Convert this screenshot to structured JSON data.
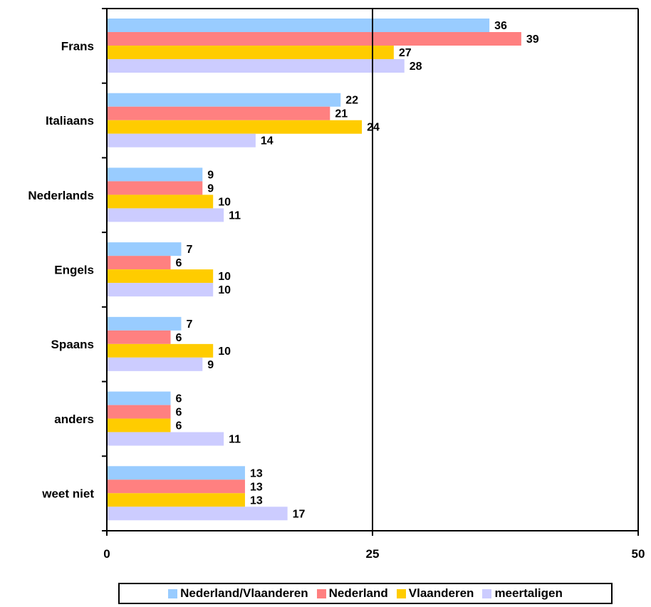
{
  "chart_data": {
    "type": "bar",
    "orientation": "horizontal",
    "categories": [
      "Frans",
      "Italiaans",
      "Nederlands",
      "Engels",
      "Spaans",
      "anders",
      "weet niet"
    ],
    "series": [
      {
        "name": "Nederland/Vlaanderen",
        "color": "#99ccff",
        "values": [
          36,
          22,
          9,
          7,
          7,
          6,
          13
        ]
      },
      {
        "name": "Nederland",
        "color": "#ff8080",
        "values": [
          39,
          21,
          9,
          6,
          6,
          6,
          13
        ]
      },
      {
        "name": "Vlaanderen",
        "color": "#ffcc00",
        "values": [
          27,
          24,
          10,
          10,
          10,
          6,
          13
        ]
      },
      {
        "name": "meertaligen",
        "color": "#ccccff",
        "values": [
          28,
          14,
          11,
          10,
          9,
          11,
          17
        ]
      }
    ],
    "xlim": [
      0,
      50
    ],
    "xticks": [
      "0",
      "25",
      "50"
    ],
    "grid": "vertical line at 25",
    "legend_position": "bottom",
    "data_labels": true
  }
}
